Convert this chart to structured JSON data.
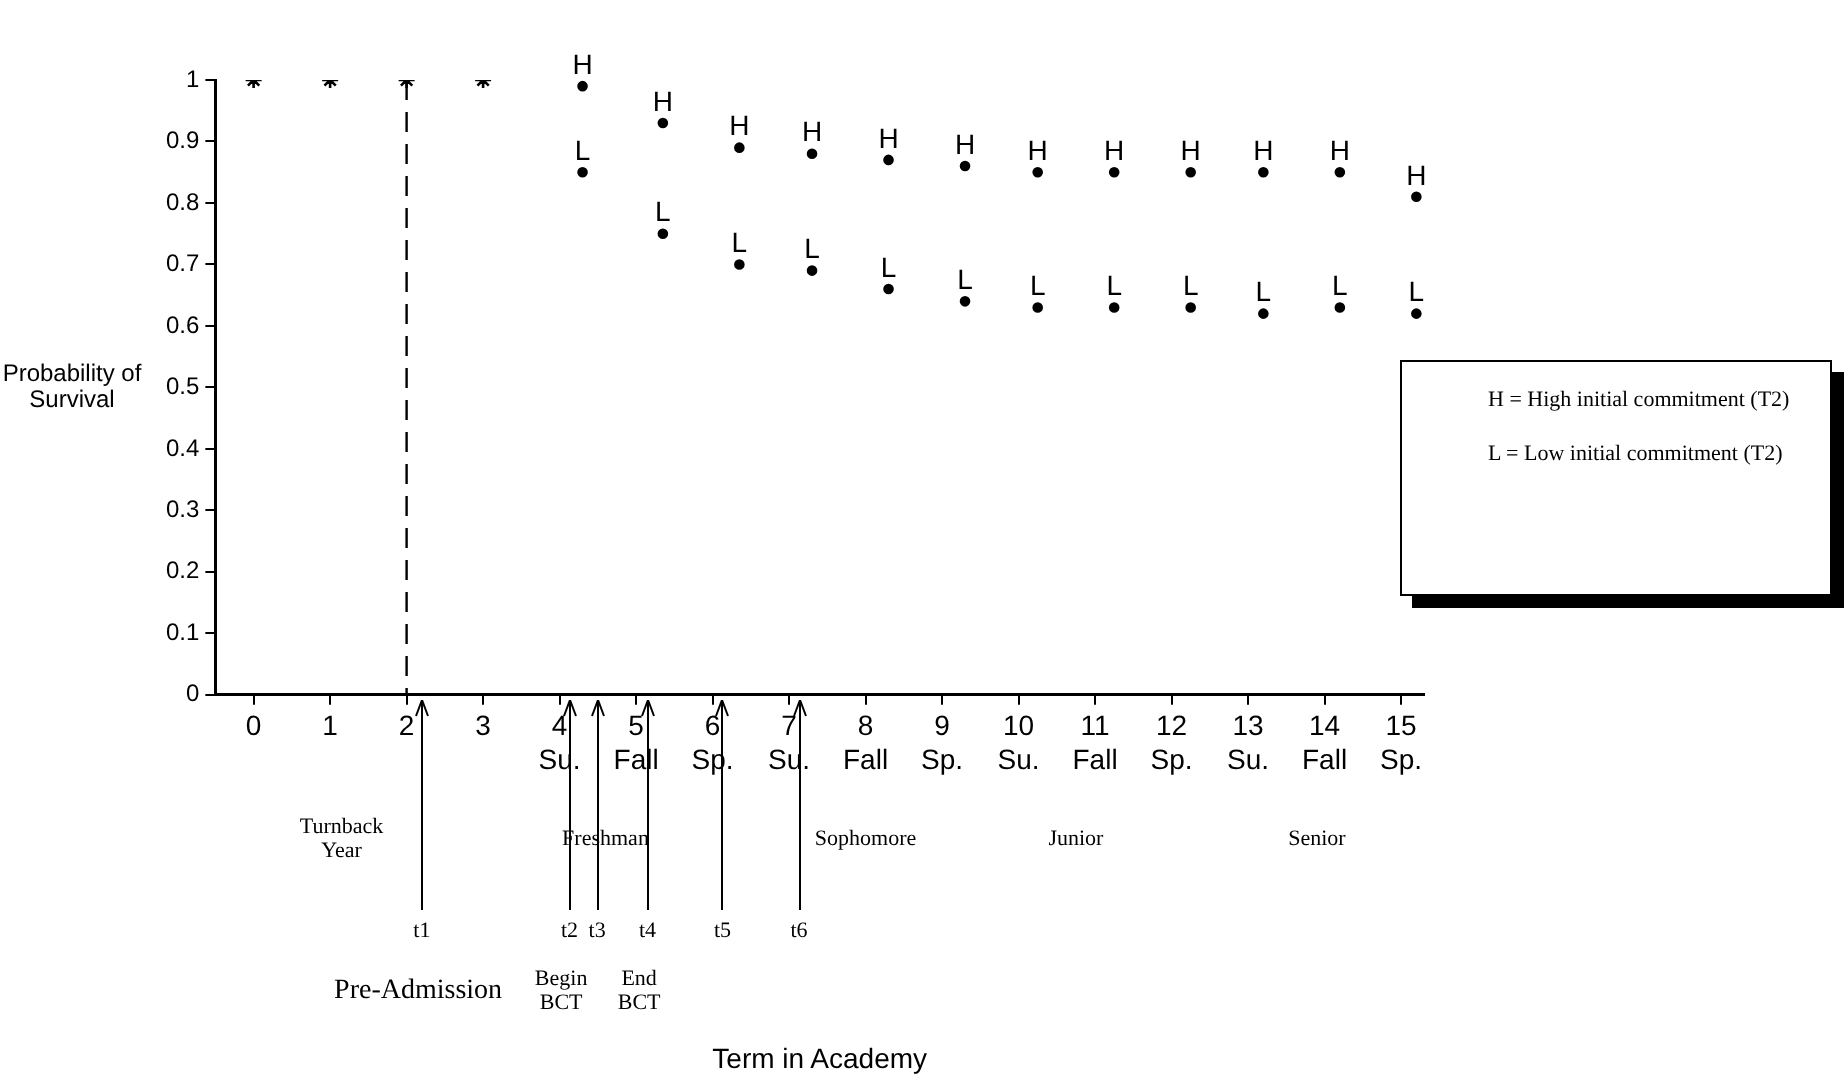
{
  "chart_data": {
    "type": "scatter",
    "ylabel": "Probability of Survival",
    "xlim": [
      -0.5,
      15.3
    ],
    "ylim": [
      0,
      1
    ],
    "xticks": [
      0,
      1,
      2,
      3,
      {
        "value": 4,
        "label": "4\nSu."
      },
      {
        "value": 5,
        "label": "5\nFall"
      },
      {
        "value": 6,
        "label": "6\nSp."
      },
      {
        "value": 7,
        "label": "7\nSu."
      },
      {
        "value": 8,
        "label": "8\nFall"
      },
      {
        "value": 9,
        "label": "9\nSp."
      },
      {
        "value": 10,
        "label": "10\nSu."
      },
      {
        "value": 11,
        "label": "11\nFall"
      },
      {
        "value": 12,
        "label": "12\nSp."
      },
      {
        "value": 13,
        "label": "13\nSu."
      },
      {
        "value": 14,
        "label": "14\nFall"
      },
      {
        "value": 15,
        "label": "15\nSp."
      }
    ],
    "yticks": [
      0,
      0.1,
      0.2,
      0.3,
      0.4,
      0.5,
      0.6,
      0.7,
      0.8,
      0.9,
      1
    ],
    "grid": false,
    "series": [
      {
        "color": "#000000",
        "x": [
          0,
          1,
          2,
          3
        ],
        "values": [
          1,
          1,
          1,
          1
        ],
        "marker": "cross"
      },
      {
        "color": "#000000",
        "x": [
          4.3,
          5.35,
          6.35,
          7.3,
          8.3,
          9.3,
          10.25,
          11.25,
          12.25,
          13.2,
          14.2,
          15.2
        ],
        "values": [
          0.99,
          0.93,
          0.89,
          0.88,
          0.87,
          0.86,
          0.85,
          0.85,
          0.85,
          0.85,
          0.85,
          0.81
        ],
        "marker": "circle",
        "value_labels": [
          "H",
          "H",
          "H",
          "H",
          "H",
          "H",
          "H",
          "H",
          "H",
          "H",
          "H",
          "H"
        ]
      },
      {
        "color": "#000000",
        "x": [
          4.3,
          5.35,
          6.35,
          7.3,
          8.3,
          9.3,
          10.25,
          11.25,
          12.25,
          13.2,
          14.2,
          15.2
        ],
        "values": [
          0.85,
          0.75,
          0.7,
          0.69,
          0.66,
          0.64,
          0.63,
          0.63,
          0.63,
          0.62,
          0.63,
          0.62
        ],
        "marker": "circle",
        "value_labels": [
          "L",
          "L",
          "L",
          "L",
          "L",
          "L",
          "L",
          "L",
          "L",
          "L",
          "L",
          "L"
        ]
      }
    ],
    "ref_lines": [
      {
        "axis": "x",
        "value": 2,
        "line_style": "dashed",
        "color": "#000000"
      }
    ],
    "annotations": [
      "Turnback Year",
      "Freshman",
      "Sophomore",
      "Junior",
      "Senior",
      "t1",
      "t2",
      "t3",
      "t4",
      "t5",
      "t6",
      "Pre-Admission",
      "Begin BCT",
      "End BCT",
      "H = High initial commitment (T2)",
      "L = Low initial commitment (T2)",
      "Term in Academy"
    ]
  }
}
